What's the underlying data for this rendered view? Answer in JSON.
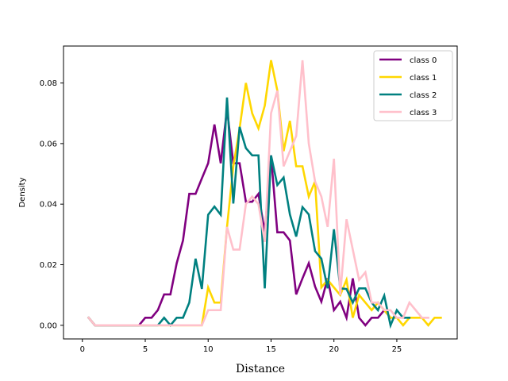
{
  "chart_data": {
    "type": "line",
    "title": "",
    "xlabel": "Distance",
    "ylabel": "Density",
    "xlim": [
      -1.5,
      29.8
    ],
    "ylim": [
      -0.0045,
      0.0922
    ],
    "xticks": [
      0,
      5,
      10,
      15,
      20,
      25
    ],
    "yticks": [
      0.0,
      0.02,
      0.04,
      0.06,
      0.08
    ],
    "ytick_labels": [
      "0.00",
      "0.02",
      "0.04",
      "0.06",
      "0.08"
    ],
    "grid": false,
    "legend_position": "top-right",
    "series": [
      {
        "name": "class 0",
        "color": "#800080",
        "x": [
          0.5,
          1.0,
          1.5,
          2.0,
          2.5,
          3.0,
          3.5,
          4.0,
          4.5,
          5.0,
          5.5,
          6.0,
          6.5,
          7.0,
          7.5,
          8.0,
          8.5,
          9.0,
          9.5,
          10.0,
          10.5,
          11.0,
          11.5,
          12.0,
          12.5,
          13.0,
          13.5,
          14.0,
          14.5,
          15.0,
          15.5,
          16.0,
          16.5,
          17.0,
          17.5,
          18.0,
          18.5,
          19.0,
          19.5,
          20.0,
          20.5,
          21.0,
          21.5,
          22.0,
          22.5,
          23.0,
          23.5,
          24.0,
          24.5
        ],
        "values": [
          0.0025,
          0.0,
          0.0,
          0.0,
          0.0,
          0.0,
          0.0,
          0.0,
          0.0,
          0.0025,
          0.0025,
          0.005,
          0.0102,
          0.0102,
          0.0205,
          0.028,
          0.0434,
          0.0434,
          0.0485,
          0.0535,
          0.0663,
          0.0535,
          0.0714,
          0.0535,
          0.0535,
          0.0408,
          0.0408,
          0.0434,
          0.0307,
          0.0561,
          0.0307,
          0.0307,
          0.028,
          0.0102,
          0.0155,
          0.0205,
          0.0128,
          0.0078,
          0.0155,
          0.005,
          0.0078,
          0.0025,
          0.0155,
          0.0025,
          0.0,
          0.0025,
          0.0025,
          0.005,
          0.0025
        ]
      },
      {
        "name": "class 1",
        "color": "#FFD700",
        "x": [
          0.5,
          1.0,
          1.5,
          2.0,
          2.5,
          3.0,
          3.5,
          4.0,
          4.5,
          5.0,
          5.5,
          6.0,
          6.5,
          7.0,
          7.5,
          8.0,
          8.5,
          9.0,
          9.5,
          10.0,
          10.5,
          11.0,
          11.5,
          12.0,
          12.5,
          13.0,
          13.5,
          14.0,
          14.5,
          15.0,
          15.5,
          16.0,
          16.5,
          17.0,
          17.5,
          18.0,
          18.5,
          19.0,
          19.5,
          20.0,
          20.5,
          21.0,
          21.5,
          22.0,
          22.5,
          23.0,
          23.5,
          24.0,
          24.5,
          25.0,
          25.5,
          26.0,
          26.5,
          27.0,
          27.5,
          28.0,
          28.5
        ],
        "values": [
          0.0025,
          0.0,
          0.0,
          0.0,
          0.0,
          0.0,
          0.0,
          0.0,
          0.0,
          0.0,
          0.0,
          0.0,
          0.0,
          0.0,
          0.0,
          0.0,
          0.0,
          0.0,
          0.0,
          0.0125,
          0.0075,
          0.0075,
          0.0325,
          0.0525,
          0.065,
          0.08,
          0.07,
          0.065,
          0.0725,
          0.0875,
          0.0775,
          0.0575,
          0.0675,
          0.0525,
          0.0525,
          0.0425,
          0.0475,
          0.0125,
          0.015,
          0.0125,
          0.01,
          0.015,
          0.0025,
          0.01,
          0.0075,
          0.005,
          0.0075,
          0.005,
          0.0025,
          0.0025,
          0.0,
          0.0025,
          0.0025,
          0.0025,
          0.0,
          0.0025,
          0.0025
        ]
      },
      {
        "name": "class 2",
        "color": "#008080",
        "x": [
          0.5,
          1.0,
          1.5,
          2.0,
          2.5,
          3.0,
          3.5,
          4.0,
          4.5,
          5.0,
          5.5,
          6.0,
          6.5,
          7.0,
          7.5,
          8.0,
          8.5,
          9.0,
          9.5,
          10.0,
          10.5,
          11.0,
          11.5,
          12.0,
          12.5,
          13.0,
          13.5,
          14.0,
          14.5,
          15.0,
          15.5,
          16.0,
          16.5,
          17.0,
          17.5,
          18.0,
          18.5,
          19.0,
          19.5,
          20.0,
          20.5,
          21.0,
          21.5,
          22.0,
          22.5,
          23.0,
          23.5,
          24.0,
          24.5,
          25.0,
          25.5,
          26.0
        ],
        "values": [
          0.0025,
          0.0,
          0.0,
          0.0,
          0.0,
          0.0,
          0.0,
          0.0,
          0.0,
          0.0,
          0.0,
          0.0,
          0.0025,
          0.0,
          0.0025,
          0.0025,
          0.0075,
          0.022,
          0.012,
          0.0365,
          0.0392,
          0.0365,
          0.0752,
          0.0402,
          0.0655,
          0.0585,
          0.0561,
          0.0561,
          0.0122,
          0.0561,
          0.0463,
          0.0488,
          0.0366,
          0.0293,
          0.039,
          0.0366,
          0.0245,
          0.022,
          0.0122,
          0.0317,
          0.0122,
          0.012,
          0.0075,
          0.0122,
          0.0122,
          0.0075,
          0.005,
          0.0098,
          0.0,
          0.005,
          0.0025,
          0.0025
        ]
      },
      {
        "name": "class 3",
        "color": "#FFC0CB",
        "x": [
          0.5,
          1.0,
          1.5,
          2.0,
          2.5,
          3.0,
          3.5,
          4.0,
          4.5,
          5.0,
          5.5,
          6.0,
          6.5,
          7.0,
          7.5,
          8.0,
          8.5,
          9.0,
          9.5,
          10.0,
          10.5,
          11.0,
          11.5,
          12.0,
          12.5,
          13.0,
          13.5,
          14.0,
          14.5,
          15.0,
          15.5,
          16.0,
          16.5,
          17.0,
          17.5,
          18.0,
          18.5,
          19.0,
          19.5,
          20.0,
          20.5,
          21.0,
          21.5,
          22.0,
          22.5,
          23.0,
          23.5,
          24.0,
          24.5,
          25.0,
          25.5,
          26.0,
          26.5,
          27.0,
          27.5
        ],
        "values": [
          0.0025,
          0.0,
          0.0,
          0.0,
          0.0,
          0.0,
          0.0,
          0.0,
          0.0,
          0.0,
          0.0,
          0.0,
          0.0,
          0.0,
          0.0,
          0.0,
          0.0,
          0.0,
          0.0,
          0.005,
          0.005,
          0.005,
          0.0325,
          0.025,
          0.025,
          0.04,
          0.0425,
          0.04,
          0.0275,
          0.07,
          0.0775,
          0.0525,
          0.0575,
          0.0625,
          0.0875,
          0.06,
          0.0475,
          0.0425,
          0.0325,
          0.055,
          0.01,
          0.035,
          0.025,
          0.015,
          0.0175,
          0.0075,
          0.0075,
          0.005,
          0.005,
          0.0025,
          0.0025,
          0.0075,
          0.005,
          0.0025,
          0.0025
        ]
      }
    ]
  }
}
